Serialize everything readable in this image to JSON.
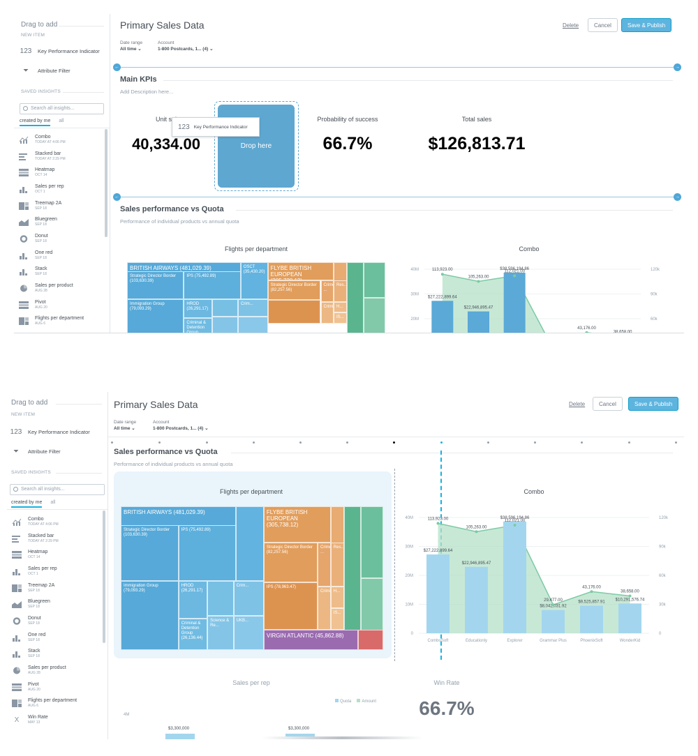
{
  "sidebar": {
    "drag_title": "Drag to add",
    "new_item_label": "NEW ITEM",
    "new_items": [
      {
        "icon": "123",
        "label": "Key Performance Indicator"
      },
      {
        "icon": "filter-icon",
        "label": "Attribute Filter"
      }
    ],
    "saved_label": "SAVED INSIGHTS",
    "search_placeholder": "Search all insights...",
    "tabs": [
      "created by me",
      "all"
    ],
    "items": [
      {
        "name": "Combo",
        "date": "TODAY AT 4:06 PM",
        "icon": "combo-icon"
      },
      {
        "name": "Stacked bar",
        "date": "TODAY AT 2:29 PM",
        "icon": "stacked-bar-icon"
      },
      {
        "name": "Heatmap",
        "date": "OCT 14",
        "icon": "heatmap-icon"
      },
      {
        "name": "Sales per rep",
        "date": "OCT 1",
        "icon": "column-icon"
      },
      {
        "name": "Treemap 2A",
        "date": "SEP 18",
        "icon": "treemap-icon"
      },
      {
        "name": "Bluegreen",
        "date": "SEP 18",
        "icon": "area-icon"
      },
      {
        "name": "Donut",
        "date": "SEP 18",
        "icon": "donut-icon"
      },
      {
        "name": "One red",
        "date": "SEP 18",
        "icon": "column-icon"
      },
      {
        "name": "Stack",
        "date": "SEP 18",
        "icon": "column-icon"
      },
      {
        "name": "Sales per product",
        "date": "AUG 28",
        "icon": "pie-icon"
      },
      {
        "name": "Pivot",
        "date": "AUG 20",
        "icon": "table-icon"
      },
      {
        "name": "Flights per department",
        "date": "AUG 6",
        "icon": "treemap-icon"
      },
      {
        "name": "Win Rate",
        "date": "MAY 13",
        "icon": "kpi-icon"
      }
    ]
  },
  "header": {
    "title": "Primary Sales Data",
    "delete": "Delete",
    "cancel": "Cancel",
    "save": "Save & Publish"
  },
  "filters": {
    "date_label": "Date range",
    "date_value": "All time",
    "account_label": "Account",
    "account_value": "1-800 Postcards, 1... (4)"
  },
  "kpi_section": {
    "title": "Main KPIs",
    "description_placeholder": "Add Description here...",
    "kpis": [
      {
        "label": "Unit sal",
        "value": "40,334.00"
      },
      {
        "label": "Probability of success",
        "value": "66.7%"
      },
      {
        "label": "Total sales",
        "value": "$126,813.71"
      }
    ],
    "drop_here": "Drop here",
    "tooltip_icon": "123",
    "tooltip_label": "Key Performance Indicator"
  },
  "sales_section": {
    "title": "Sales performance vs Quota",
    "subtitle": "Performance of individual products vs annual quota"
  },
  "treemap": {
    "title": "Flights per department",
    "groups": [
      {
        "name": "BRITISH AIRWAYS",
        "value": "(481,029.39)"
      },
      {
        "name": "FLYBE BRITISH EUROPEAN",
        "value": "(305,738.12)"
      },
      {
        "name": "VIRGIN ATLANTIC",
        "value": "(45,862.88)"
      }
    ],
    "cells": [
      {
        "label": "Strategic Director Border (103,630.39)"
      },
      {
        "label": "IPS (75,492.89)"
      },
      {
        "label": "OSCT (35,430.20)"
      },
      {
        "label": "HROD (26,291.17)"
      },
      {
        "label": "Immigration Group (79,093.29)"
      },
      {
        "label": "Criminal & Detention Group (26,136.44)"
      },
      {
        "label": "Science & Re..."
      },
      {
        "label": "Crim..."
      },
      {
        "label": "UKB..."
      },
      {
        "label": "Strategic Director Border (82,257.56)"
      },
      {
        "label": "IPS (78,963.47)"
      },
      {
        "label": "Crime ..."
      },
      {
        "label": "Res..."
      },
      {
        "label": "Crimin..."
      },
      {
        "label": "H..."
      },
      {
        "label": "IS..."
      }
    ]
  },
  "chart_data": [
    {
      "type": "combo",
      "title": "Combo",
      "categories": [
        "ComboSoft",
        "Educationly",
        "Explorer",
        "Grammar Plus",
        "PhoenixSoft",
        "WonderKid"
      ],
      "series": [
        {
          "kind": "bar",
          "values": [
            27222899.64,
            22946895.47,
            38596194.86,
            8042031.92,
            9525857.91,
            10291576.74
          ],
          "labels": [
            "$27,222,899.64",
            "$22,946,895.47",
            "$38,596,194.86",
            "$8,042,031.92",
            "$9,525,857.91",
            "$10,291,576.74"
          ]
        },
        {
          "kind": "area",
          "values": [
            113923,
            105263,
            112021,
            29477,
            43176,
            38658
          ],
          "labels": [
            "113,923.00",
            "105,263.00",
            "112,021.00",
            "29,477.00",
            "43,176.00",
            "38,658.00"
          ]
        }
      ],
      "y_left_ticks": [
        "0",
        "10M",
        "20M",
        "30M",
        "40M"
      ],
      "y_right_ticks": [
        "0",
        "30k",
        "60k",
        "90k",
        "120k"
      ],
      "ylim_left": [
        0,
        40000000
      ],
      "ylim_right": [
        0,
        120000
      ]
    },
    {
      "type": "bar",
      "title": "Sales per rep",
      "legend": [
        "Quota",
        "Amount"
      ],
      "y_ticks_visible": [
        "4M"
      ],
      "data_labels": [
        "$3,300,000",
        "$3,300,000"
      ]
    },
    {
      "type": "kpi",
      "title": "Win Rate",
      "value": "66.7%"
    }
  ],
  "colors": {
    "accent": "#14b2e2",
    "bar_blue": "#a3d6ee",
    "area_green": "#b5e0c8",
    "ba_blue": "#56a9d8",
    "flybe_orange": "#e19d5b",
    "green": "#5ab58f",
    "virgin_purple": "#9b6bb0"
  }
}
